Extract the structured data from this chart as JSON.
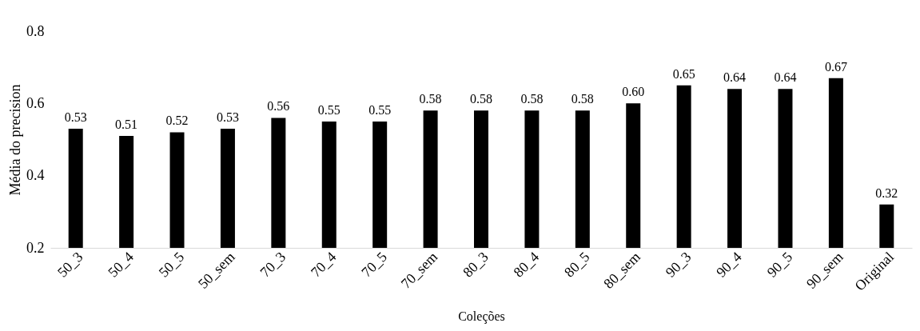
{
  "chart_data": {
    "type": "bar",
    "xlabel": "Coleções",
    "ylabel": "Média do precision",
    "categories": [
      "50_3",
      "50_4",
      "50_5",
      "50_sem",
      "70_3",
      "70_4",
      "70_5",
      "70_sem",
      "80_3",
      "80_4",
      "80_5",
      "80_sem",
      "90_3",
      "90_4",
      "90_5",
      "90_sem",
      "Original"
    ],
    "values": [
      0.53,
      0.51,
      0.52,
      0.53,
      0.56,
      0.55,
      0.55,
      0.58,
      0.58,
      0.58,
      0.58,
      0.6,
      0.65,
      0.64,
      0.64,
      0.67,
      0.32
    ],
    "value_labels": [
      "0.53",
      "0.51",
      "0.52",
      "0.53",
      "0.56",
      "0.55",
      "0.55",
      "0.58",
      "0.58",
      "0.58",
      "0.58",
      "0.60",
      "0.65",
      "0.64",
      "0.64",
      "0.67",
      "0.32"
    ],
    "color": "#000000",
    "ylim": [
      0.2,
      0.8
    ],
    "yticks": [
      0.2,
      0.4,
      0.6,
      0.8
    ],
    "grid": false
  }
}
